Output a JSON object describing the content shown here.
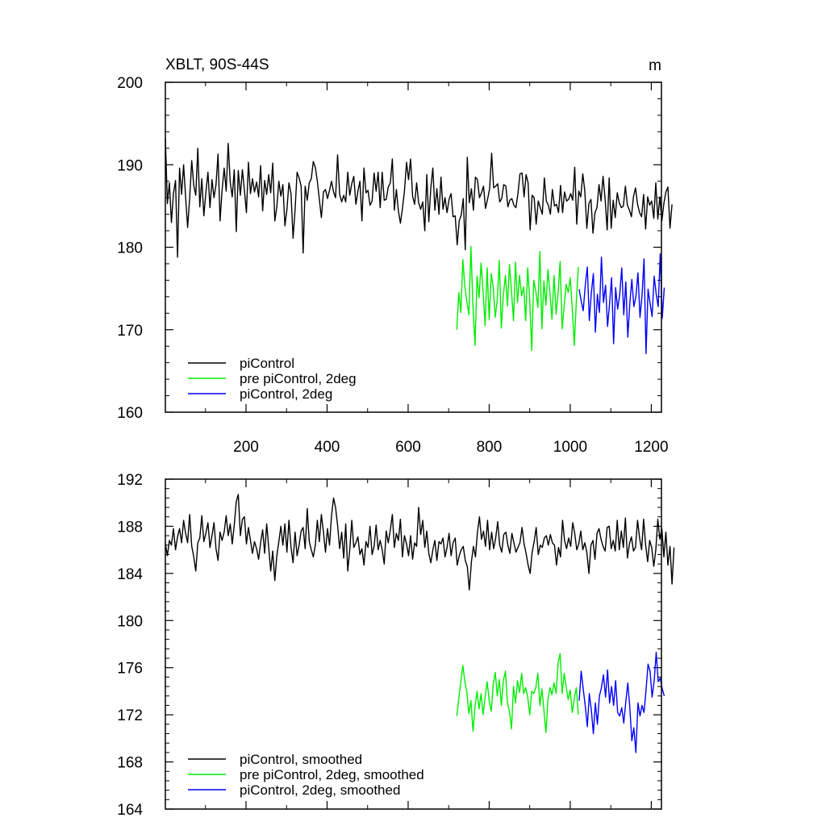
{
  "chart_data": [
    {
      "type": "line",
      "title": "XBLT, 90S-44S",
      "units": "m",
      "xlim": [
        1,
        1225
      ],
      "ylim": [
        160,
        200
      ],
      "x_ticks": [
        200,
        400,
        600,
        800,
        1000,
        1200
      ],
      "x_tick_labels": [
        "200",
        "400",
        "600",
        "800",
        "1000",
        "1200"
      ],
      "y_ticks": [
        160,
        170,
        180,
        190,
        200
      ],
      "y_tick_labels": [
        "160",
        "170",
        "180",
        "190",
        "200"
      ],
      "legend_position": "bottom-left",
      "series": [
        {
          "name": "piControl",
          "color": "#000000",
          "x_start": 1,
          "x_step": 5,
          "values": [
            193.2,
            185.3,
            187.8,
            183.0,
            186.5,
            188.1,
            178.8,
            189.6,
            186.4,
            190.0,
            186.1,
            182.4,
            185.9,
            190.5,
            187.5,
            186.3,
            192.0,
            184.9,
            188.3,
            183.8,
            186.6,
            189.1,
            184.8,
            188.2,
            186.0,
            187.6,
            191.3,
            183.2,
            186.9,
            189.6,
            186.8,
            192.6,
            187.9,
            186.1,
            189.4,
            181.9,
            189.3,
            186.3,
            189.4,
            186.9,
            184.2,
            190.3,
            186.5,
            188.3,
            186.7,
            187.9,
            186.1,
            189.9,
            184.4,
            188.1,
            186.4,
            188.8,
            186.6,
            190.2,
            183.2,
            184.9,
            188.0,
            186.2,
            187.6,
            182.6,
            184.6,
            187.8,
            186.5,
            181.1,
            184.5,
            189.1,
            188.4,
            187.4,
            179.3,
            187.4,
            185.7,
            187.8,
            188.3,
            190.4,
            189.7,
            188.0,
            185.8,
            183.6,
            186.7,
            187.0,
            185.9,
            186.9,
            188.0,
            186.7,
            186.0,
            191.2,
            186.4,
            185.5,
            186.3,
            185.5,
            189.1,
            186.3,
            187.7,
            188.6,
            185.2,
            186.8,
            188.0,
            183.2,
            189.6,
            186.6,
            186.9,
            185.1,
            185.6,
            189.0,
            186.8,
            189.1,
            184.8,
            189.1,
            185.7,
            185.8,
            187.3,
            187.8,
            190.7,
            184.5,
            187.0,
            184.4,
            182.9,
            184.7,
            186.8,
            190.3,
            188.2,
            190.7,
            186.2,
            185.2,
            187.8,
            185.4,
            184.6,
            185.5,
            182.0,
            188.8,
            183.1,
            187.2,
            189.6,
            184.5,
            187.1,
            184.0,
            188.5,
            184.6,
            186.0,
            184.2,
            185.8,
            186.5,
            183.7,
            183.8,
            180.3,
            183.2,
            183.9,
            185.9,
            179.7,
            190.9,
            185.4,
            187.1,
            184.5,
            188.5,
            188.2,
            186.0,
            186.6,
            187.4,
            184.7,
            185.8,
            187.1,
            191.4,
            187.2,
            187.4,
            187.7,
            185.5,
            185.9,
            187.6,
            187.4,
            184.9,
            185.7,
            185.9,
            185.1,
            184.8,
            186.5,
            188.9,
            189.0,
            186.1,
            188.8,
            187.8,
            182.1,
            186.3,
            186.0,
            182.8,
            185.6,
            184.8,
            184.0,
            188.4,
            185.6,
            185.1,
            184.0,
            187.0,
            185.0,
            185.2,
            184.2,
            187.5,
            184.2,
            186.7,
            185.6,
            185.8,
            186.5,
            185.7,
            189.7,
            182.8,
            186.8,
            186.1,
            188.9,
            186.8,
            182.3,
            185.3,
            185.8,
            181.7,
            184.2,
            184.8,
            187.6,
            185.6,
            188.6,
            185.8,
            182.1,
            188.4,
            182.3,
            185.7,
            183.6,
            186.6,
            185.4,
            184.8,
            185.0,
            187.4,
            185.1,
            184.5,
            183.7,
            186.1,
            187.2,
            185.2,
            184.2,
            183.7,
            186.4,
            182.2,
            186.1,
            185.1,
            185.6,
            183.5,
            187.8,
            183.4,
            186.1,
            183.2,
            185.3,
            186.7,
            187.3,
            182.3,
            185.2
          ]
        },
        {
          "name": "pre piControl, 2deg",
          "color": "#00ee00",
          "x_start": 720,
          "x_step": 5,
          "values": [
            170.0,
            174.5,
            172.1,
            178.5,
            175.2,
            173.4,
            171.8,
            180.1,
            172.7,
            168.1,
            176.5,
            173.9,
            178.1,
            174.6,
            170.5,
            177.5,
            171.2,
            176.8,
            175.1,
            171.5,
            173.7,
            178.4,
            170.2,
            174.2,
            176.6,
            172.9,
            177.9,
            174.7,
            171.1,
            178.2,
            173.3,
            176.6,
            174.1,
            175.2,
            171.1,
            177.5,
            173.6,
            167.5,
            176.0,
            174.7,
            172.7,
            179.5,
            170.1,
            175.9,
            173.0,
            177.3,
            174.4,
            171.3,
            176.6,
            171.9,
            174.5,
            178.3,
            170.1,
            172.9,
            175.5,
            174.5,
            176.3,
            172.5,
            168.1,
            173.5,
            177.6
          ]
        },
        {
          "name": "piControl, 2deg",
          "color": "#0000ff",
          "x_start": 1022,
          "x_step": 5,
          "values": [
            174.9,
            173.5,
            172.3,
            175.3,
            177.6,
            171.1,
            174.5,
            176.8,
            169.7,
            174.3,
            172.1,
            178.8,
            173.3,
            175.4,
            170.4,
            173.2,
            176.3,
            168.3,
            175.1,
            172.5,
            174.2,
            177.5,
            171.8,
            175.8,
            169.1,
            173.2,
            176.1,
            172.8,
            174.0,
            176.9,
            171.5,
            174.1,
            178.6,
            167.1,
            174.9,
            173.2,
            171.6,
            176.5,
            174.3,
            172.8,
            179.2,
            171.4,
            175.1
          ]
        }
      ]
    },
    {
      "type": "line",
      "xlim": [
        1,
        1225
      ],
      "ylim": [
        164,
        192
      ],
      "x_ticks": [
        200,
        400,
        600,
        800,
        1000,
        1200
      ],
      "y_ticks": [
        164,
        168,
        172,
        176,
        180,
        184,
        188,
        192
      ],
      "y_tick_labels": [
        "164",
        "168",
        "172",
        "176",
        "180",
        "184",
        "188",
        "192"
      ],
      "legend_position": "bottom-left",
      "series": [
        {
          "name": "piControl, smoothed",
          "color": "#000000",
          "x_start": 1,
          "x_step": 5,
          "values": [
            186.5,
            185.5,
            186.8,
            186.4,
            187.8,
            186.0,
            187.1,
            187.8,
            186.6,
            188.5,
            187.4,
            186.6,
            189.0,
            186.3,
            185.4,
            184.2,
            186.6,
            187.0,
            188.9,
            186.7,
            187.4,
            188.3,
            186.2,
            187.2,
            188.3,
            186.1,
            185.1,
            187.5,
            186.8,
            187.5,
            188.9,
            187.2,
            188.2,
            186.5,
            188.1,
            190.1,
            190.7,
            187.2,
            188.6,
            188.8,
            186.5,
            187.9,
            186.8,
            185.7,
            186.7,
            186.1,
            185.2,
            186.6,
            187.7,
            185.7,
            188.2,
            186.2,
            184.2,
            185.9,
            183.4,
            185.5,
            186.7,
            188.0,
            186.4,
            188.2,
            185.8,
            188.5,
            186.2,
            184.9,
            187.5,
            185.5,
            186.4,
            187.6,
            187.9,
            186.1,
            189.5,
            186.7,
            186.0,
            185.4,
            186.4,
            188.5,
            186.7,
            189.0,
            187.5,
            185.8,
            187.8,
            186.4,
            188.9,
            190.4,
            189.6,
            188.1,
            186.1,
            187.5,
            185.3,
            188.2,
            184.2,
            186.0,
            188.5,
            186.2,
            186.6,
            187.1,
            185.6,
            186.1,
            184.7,
            186.7,
            186.2,
            188.0,
            185.6,
            186.3,
            188.1,
            186.0,
            186.8,
            186.0,
            184.8,
            187.6,
            186.6,
            187.7,
            189.0,
            186.2,
            187.4,
            186.8,
            188.6,
            185.4,
            187.2,
            186.5,
            185.5,
            187.2,
            185.2,
            186.6,
            186.3,
            189.6,
            187.3,
            188.5,
            186.2,
            187.6,
            185.7,
            184.9,
            186.0,
            186.8,
            185.1,
            186.7,
            186.5,
            187.0,
            185.4,
            186.2,
            187.4,
            185.5,
            186.6,
            187.0,
            184.7,
            185.5,
            186.0,
            186.3,
            185.1,
            184.6,
            182.6,
            185.0,
            186.3,
            185.4,
            187.5,
            188.8,
            186.9,
            187.6,
            186.3,
            188.5,
            186.0,
            187.5,
            186.1,
            187.0,
            188.4,
            186.4,
            185.8,
            187.3,
            187.5,
            186.4,
            185.7,
            187.4,
            186.6,
            185.8,
            186.2,
            186.6,
            187.9,
            186.5,
            185.7,
            184.7,
            184.0,
            185.8,
            186.7,
            187.9,
            185.6,
            186.4,
            186.2,
            187.0,
            187.2,
            186.4,
            187.3,
            186.6,
            186.4,
            184.7,
            186.2,
            185.4,
            188.5,
            186.8,
            186.1,
            187.0,
            186.3,
            188.3,
            187.4,
            186.0,
            186.5,
            187.6,
            186.0,
            186.6,
            185.8,
            184.0,
            186.4,
            186.8,
            185.2,
            187.4,
            187.8,
            186.9,
            186.3,
            185.9,
            187.9,
            188.0,
            186.1,
            186.8,
            185.9,
            188.5,
            186.0,
            187.6,
            186.2,
            188.7,
            185.3,
            186.5,
            187.1,
            185.9,
            186.2,
            188.5,
            187.0,
            186.0,
            188.6,
            186.4,
            185.0,
            186.8,
            186.2,
            184.6,
            186.0,
            188.6,
            186.9,
            187.8,
            185.4,
            187.5,
            184.7,
            186.3,
            183.1,
            186.2
          ]
        },
        {
          "name": "pre piControl, 2deg, smoothed",
          "color": "#00ee00",
          "x_start": 720,
          "x_step": 5,
          "values": [
            171.9,
            173.4,
            174.8,
            176.2,
            174.8,
            173.9,
            172.1,
            173.2,
            170.6,
            172.7,
            174.0,
            172.5,
            173.8,
            172.0,
            173.5,
            174.8,
            173.2,
            172.3,
            174.6,
            175.6,
            173.6,
            175.0,
            172.8,
            174.9,
            175.7,
            173.0,
            172.3,
            170.8,
            174.4,
            173.0,
            174.9,
            173.9,
            175.5,
            173.8,
            174.3,
            173.5,
            172.0,
            174.0,
            173.8,
            174.3,
            175.5,
            172.8,
            174.2,
            172.4,
            170.5,
            173.3,
            174.3,
            173.7,
            174.7,
            173.8,
            176.4,
            177.2,
            173.8,
            175.5,
            174.4,
            173.3,
            174.1,
            172.2,
            173.4,
            174.3,
            172.0
          ]
        },
        {
          "name": "piControl, 2deg, smoothed",
          "color": "#0000ff",
          "x_start": 1022,
          "x_step": 5,
          "values": [
            173.2,
            175.7,
            174.2,
            172.8,
            171.0,
            173.8,
            172.4,
            170.4,
            173.0,
            171.2,
            173.6,
            174.3,
            175.4,
            173.5,
            175.8,
            173.0,
            174.4,
            172.8,
            174.9,
            172.2,
            171.9,
            172.6,
            171.3,
            173.1,
            174.7,
            172.6,
            169.8,
            170.9,
            168.8,
            173.0,
            171.9,
            172.8,
            172.2,
            174.1,
            176.3,
            175.7,
            173.5,
            174.9,
            177.3,
            174.8,
            175.1,
            174.2,
            173.6
          ]
        }
      ]
    }
  ]
}
